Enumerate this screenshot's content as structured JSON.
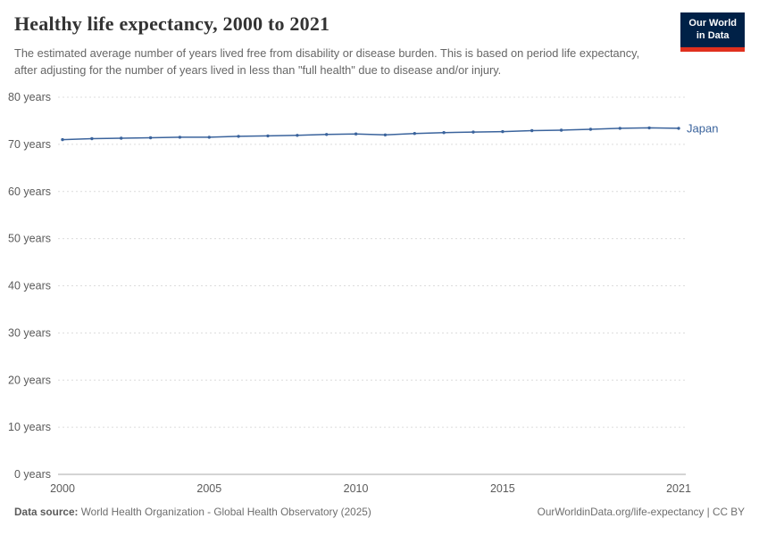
{
  "header": {
    "title": "Healthy life expectancy, 2000 to 2021",
    "subtitle": "The estimated average number of years lived free from disability or disease burden. This is based on period life expectancy, after adjusting for the number of years lived in less than \"full health\" due to disease and/or injury.",
    "logo_line1": "Our World",
    "logo_line2": "in Data",
    "logo_bg": "#002147",
    "logo_accent": "#e0301e"
  },
  "chart_data": {
    "type": "line",
    "title": "Healthy life expectancy, 2000 to 2021",
    "x": [
      2000,
      2001,
      2002,
      2003,
      2004,
      2005,
      2006,
      2007,
      2008,
      2009,
      2010,
      2011,
      2012,
      2013,
      2014,
      2015,
      2016,
      2017,
      2018,
      2019,
      2020,
      2021
    ],
    "series": [
      {
        "name": "Japan",
        "color": "#3a639c",
        "values": [
          71.0,
          71.2,
          71.3,
          71.4,
          71.5,
          71.5,
          71.7,
          71.8,
          71.9,
          72.1,
          72.2,
          72.0,
          72.3,
          72.5,
          72.6,
          72.7,
          72.9,
          73.0,
          73.2,
          73.4,
          73.5,
          73.4
        ]
      }
    ],
    "ylim": [
      0,
      80
    ],
    "yticks": [
      0,
      10,
      20,
      30,
      40,
      50,
      60,
      70,
      80
    ],
    "y_unit": "years",
    "xticks": [
      2000,
      2005,
      2010,
      2015,
      2021
    ],
    "grid": "horizontal-dashed",
    "legend_position": "end-of-line-label"
  },
  "footer": {
    "source_label": "Data source:",
    "source_text": "World Health Organization - Global Health Observatory (2025)",
    "right_text": "OurWorldinData.org/life-expectancy | CC BY"
  }
}
